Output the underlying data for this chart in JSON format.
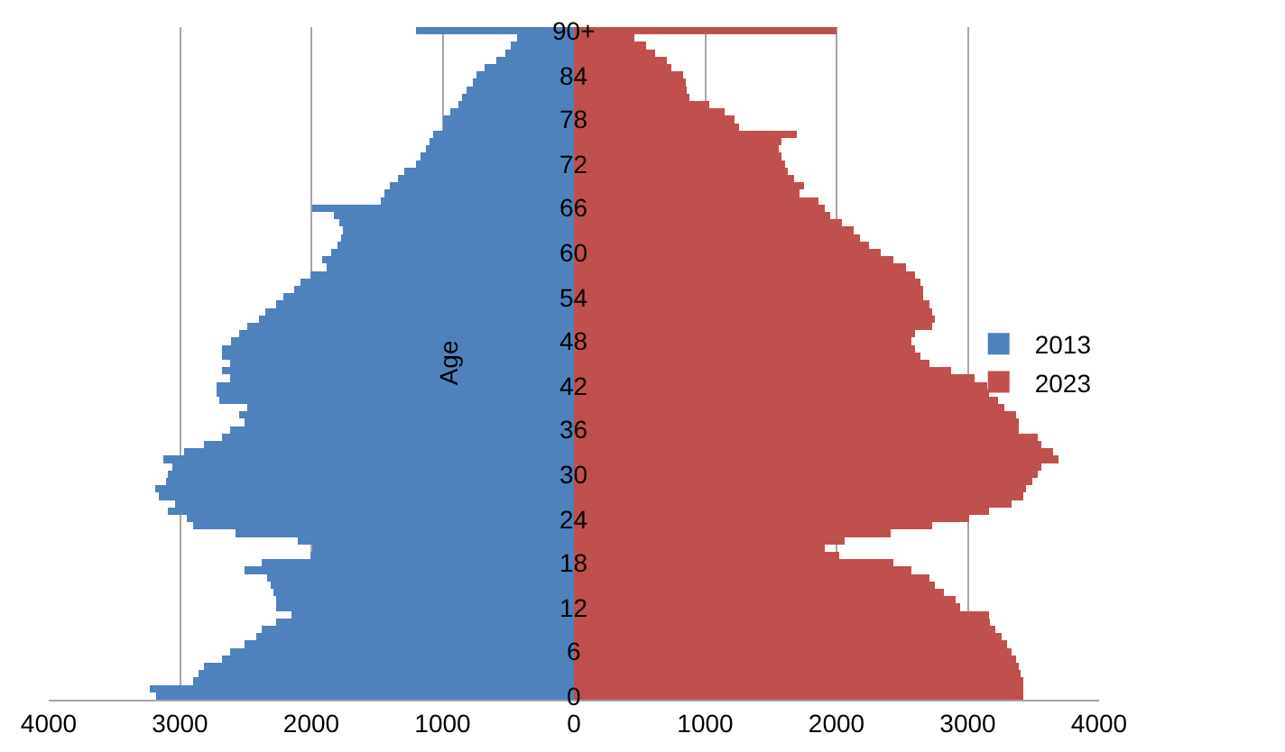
{
  "chart_data": {
    "type": "bar",
    "orientation": "horizontal",
    "ylabel": "Age",
    "categories": [
      "90+",
      null,
      null,
      null,
      null,
      null,
      "84",
      null,
      null,
      null,
      null,
      null,
      "78",
      null,
      null,
      null,
      null,
      null,
      "72",
      null,
      null,
      null,
      null,
      null,
      "66",
      null,
      null,
      null,
      null,
      null,
      "60",
      null,
      null,
      null,
      null,
      null,
      "54",
      null,
      null,
      null,
      null,
      null,
      "48",
      null,
      null,
      null,
      null,
      null,
      "42",
      null,
      null,
      null,
      null,
      null,
      "36",
      null,
      null,
      null,
      null,
      null,
      "30",
      null,
      null,
      null,
      null,
      null,
      "24",
      null,
      null,
      null,
      null,
      null,
      "18",
      null,
      null,
      null,
      null,
      null,
      "12",
      null,
      null,
      null,
      null,
      null,
      "6",
      null,
      null,
      null,
      null,
      null,
      "0"
    ],
    "series": [
      {
        "name": "2023",
        "color": "#c0504d",
        "values": [
          2000,
          460,
          550,
          620,
          710,
          740,
          830,
          850,
          860,
          880,
          1030,
          1150,
          1220,
          1260,
          1700,
          1580,
          1560,
          1580,
          1610,
          1630,
          1680,
          1750,
          1720,
          1860,
          1910,
          1950,
          2040,
          2130,
          2180,
          2250,
          2340,
          2430,
          2530,
          2600,
          2640,
          2660,
          2660,
          2710,
          2730,
          2750,
          2730,
          2600,
          2570,
          2600,
          2640,
          2710,
          2870,
          3050,
          3150,
          3160,
          3230,
          3280,
          3370,
          3390,
          3390,
          3530,
          3560,
          3650,
          3690,
          3560,
          3530,
          3490,
          3440,
          3420,
          3330,
          3160,
          3010,
          2730,
          2410,
          2060,
          1910,
          2020,
          2430,
          2570,
          2710,
          2750,
          2820,
          2910,
          2940,
          3160,
          3170,
          3210,
          3260,
          3300,
          3330,
          3370,
          3390,
          3400,
          3420,
          3420,
          3420
        ]
      },
      {
        "name": "2013",
        "color": "#4f81bd",
        "values": [
          -1200,
          -430,
          -480,
          -520,
          -590,
          -680,
          -740,
          -770,
          -820,
          -850,
          -880,
          -940,
          -1000,
          -1000,
          -1070,
          -1100,
          -1130,
          -1170,
          -1200,
          -1290,
          -1340,
          -1400,
          -1440,
          -1470,
          -1990,
          -1830,
          -1790,
          -1760,
          -1770,
          -1800,
          -1850,
          -1920,
          -1880,
          -2010,
          -2080,
          -2130,
          -2210,
          -2270,
          -2350,
          -2400,
          -2490,
          -2550,
          -2610,
          -2680,
          -2680,
          -2620,
          -2680,
          -2620,
          -2720,
          -2720,
          -2700,
          -2490,
          -2550,
          -2510,
          -2620,
          -2680,
          -2820,
          -2970,
          -3130,
          -3060,
          -3090,
          -3110,
          -3190,
          -3160,
          -3040,
          -3090,
          -2950,
          -2900,
          -2580,
          -2100,
          -1990,
          -2010,
          -2380,
          -2510,
          -2340,
          -2310,
          -2290,
          -2270,
          -2270,
          -2150,
          -2270,
          -2380,
          -2420,
          -2510,
          -2620,
          -2680,
          -2820,
          -2860,
          -2900,
          -3230,
          -3180
        ]
      }
    ],
    "xlim": [
      -4000,
      4000
    ],
    "xticks": [
      {
        "value": -4000,
        "label": "4000"
      },
      {
        "value": -3000,
        "label": "3000"
      },
      {
        "value": -2000,
        "label": "2000"
      },
      {
        "value": -1000,
        "label": "1000"
      },
      0,
      1000,
      2000,
      3000,
      4000
    ],
    "grid": "x",
    "legend": "right",
    "stacked": true
  }
}
